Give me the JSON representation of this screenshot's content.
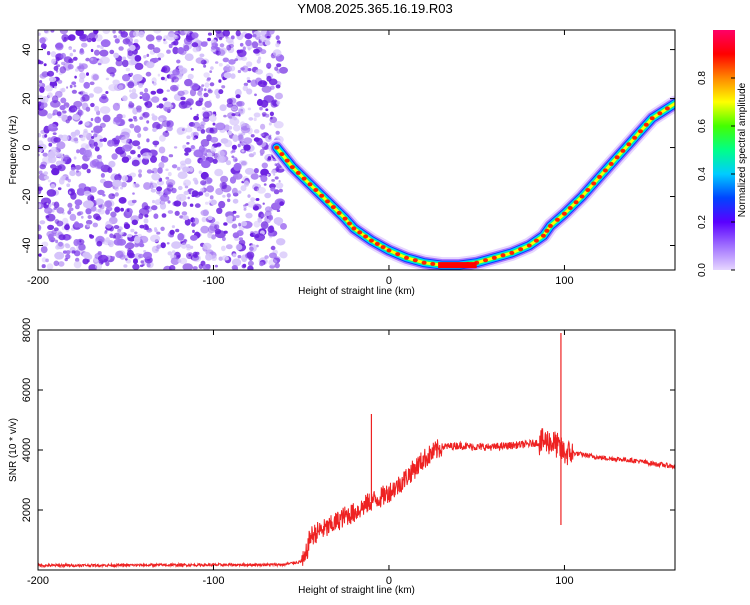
{
  "title": "YM08.2025.365.16.19.R03",
  "colors": {
    "snr_line": "#ee2222",
    "noise_dots": "#6a1fe0",
    "colorbar_stops": [
      "#e6d6ff",
      "#a070ff",
      "#5a00ff",
      "#0044ff",
      "#00ccff",
      "#00ff88",
      "#44ff00",
      "#ffff00",
      "#ff8800",
      "#ff0000",
      "#ff0066"
    ]
  },
  "chart_data": [
    {
      "type": "heatmap",
      "xlabel": "Height of straight line (km)",
      "ylabel": "Frequency (Hz)",
      "xlim": [
        -200,
        163
      ],
      "ylim": [
        -50,
        48
      ],
      "x_ticks": [
        -200,
        -100,
        0,
        100
      ],
      "y_ticks": [
        -40,
        -20,
        0,
        20,
        40
      ],
      "colorbar": {
        "label": "Normalized spectral amplitude",
        "range": [
          0,
          1
        ],
        "ticks": [
          "0.0",
          "0.2",
          "0.4",
          "0.6",
          "0.8"
        ]
      },
      "noise_region_x": [
        -200,
        -60
      ],
      "ridge": {
        "x": [
          -64,
          -55,
          -45,
          -35,
          -25,
          -20,
          -10,
          0,
          10,
          20,
          30,
          40,
          50,
          60,
          70,
          80,
          88,
          92,
          100,
          110,
          120,
          130,
          140,
          150,
          163
        ],
        "y": [
          0,
          -8,
          -15,
          -22,
          -29,
          -33,
          -38,
          -42,
          -45,
          -47,
          -48,
          -48,
          -47,
          -45,
          -43,
          -40,
          -36,
          -32,
          -27,
          -20,
          -12,
          -4,
          4,
          12,
          18
        ]
      }
    },
    {
      "type": "line",
      "xlabel": "Height of straight line (km)",
      "ylabel": "SNR (10 * v/v)",
      "xlim": [
        -200,
        163
      ],
      "ylim": [
        0,
        8000
      ],
      "x_ticks": [
        -200,
        -100,
        0,
        100
      ],
      "y_ticks": [
        2000,
        4000,
        6000,
        8000
      ],
      "series": [
        {
          "x": [
            -200,
            -150,
            -100,
            -60,
            -48,
            -45,
            -40,
            -35,
            -30,
            -25,
            -20,
            -15,
            -10,
            -5,
            0,
            5,
            10,
            15,
            20,
            25,
            30,
            40,
            50,
            60,
            70,
            80,
            90,
            95,
            98,
            100,
            105,
            110,
            120,
            130,
            140,
            150,
            163
          ],
          "y": [
            150,
            160,
            170,
            180,
            300,
            1100,
            1300,
            1400,
            1600,
            1800,
            1900,
            2100,
            2300,
            2400,
            2600,
            2800,
            3100,
            3400,
            3700,
            3900,
            4100,
            4150,
            4100,
            4100,
            4150,
            4200,
            4300,
            4200,
            4000,
            3900,
            3900,
            3850,
            3750,
            3700,
            3650,
            3550,
            3450
          ]
        }
      ],
      "spikes": [
        {
          "x": -10,
          "y": 5200
        },
        {
          "x": 98,
          "y": 7900
        },
        {
          "x": 98,
          "y": 1500
        }
      ]
    }
  ]
}
